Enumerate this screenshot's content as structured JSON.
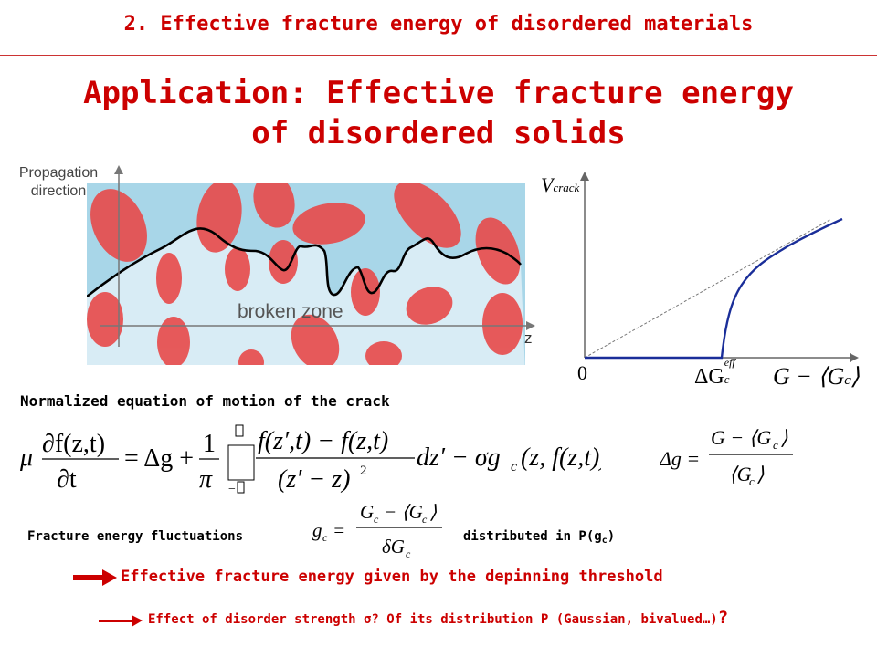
{
  "header": {
    "title": "2. Effective fracture energy of disordered materials"
  },
  "main": {
    "title_line1": "Application: Effective fracture energy",
    "title_line2": "of disordered solids"
  },
  "left_figure": {
    "propagation_label_1": "Propagation",
    "propagation_label_2": "direction",
    "broken_zone_label": "broken zone",
    "z_axis_label": "z"
  },
  "right_figure": {
    "y_axis_label": "V",
    "y_axis_sub": "crack",
    "origin_label": "0",
    "threshold_label": "ΔG",
    "threshold_sup": "eff",
    "threshold_sub": "c",
    "x_axis_label": "G − ⟨G",
    "x_axis_sub": "c",
    "x_axis_close": "⟩"
  },
  "equation_section": {
    "heading": "Normalized equation of motion of the crack"
  },
  "fluctuations": {
    "label": "Fracture energy fluctuations",
    "distributed_label": "distributed in P(g",
    "distributed_sub": "c",
    "distributed_close": ")"
  },
  "conclusions": {
    "line1": "Effective fracture energy given by the depinning threshold",
    "line2": "Effect of disorder strength σ? Of its distribution P (Gaussian, bivalued…)",
    "line2_end": "?"
  }
}
